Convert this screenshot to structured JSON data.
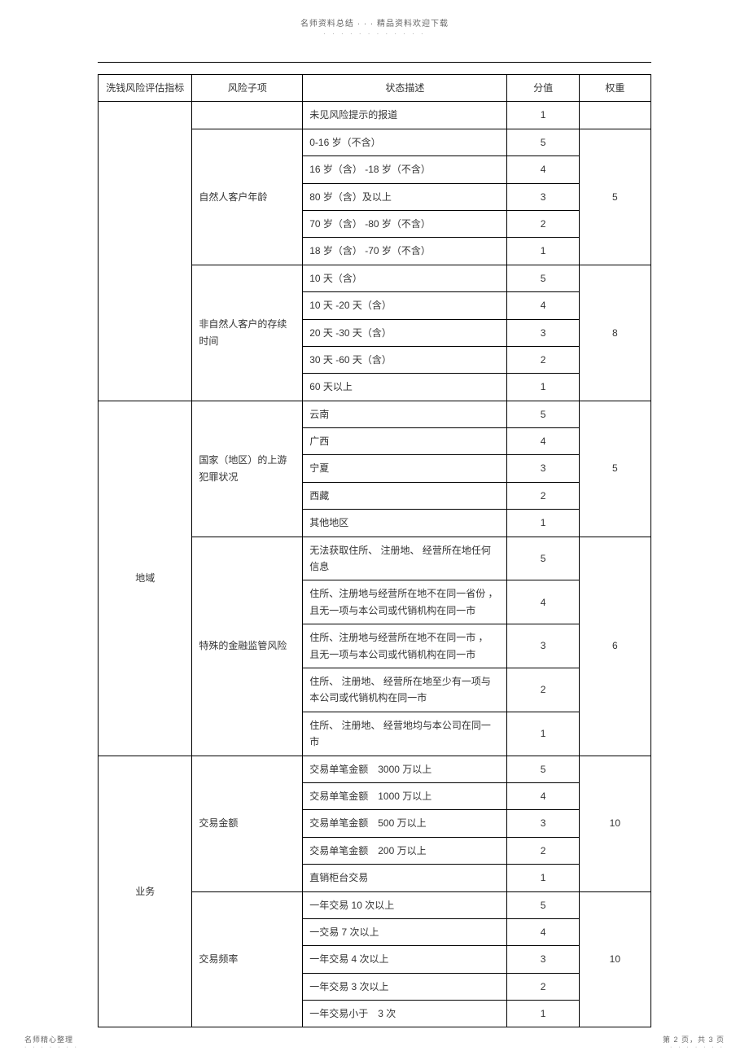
{
  "header": {
    "top_text": "名师资料总结 · · · 精品资料欢迎下载",
    "dots": "· · · · · · · · · · · ·"
  },
  "table": {
    "headers": {
      "c1": "洗钱风险评估指标",
      "c2": "风险子项",
      "c3": "状态描述",
      "c4": "分值",
      "c5": "权重"
    },
    "group0_row0_desc": "未见风险提示的报道",
    "group0_row0_score": "1",
    "group1_label": "自然人客户年龄",
    "group1_weight": "5",
    "group1_r1_desc": "0-16 岁（不含）",
    "group1_r1_score": "5",
    "group1_r2_desc": "16 岁（含） -18 岁（不含）",
    "group1_r2_score": "4",
    "group1_r3_desc": "80 岁（含）及以上",
    "group1_r3_score": "3",
    "group1_r4_desc": "70 岁（含） -80 岁（不含）",
    "group1_r4_score": "2",
    "group1_r5_desc": "18 岁（含） -70 岁（不含）",
    "group1_r5_score": "1",
    "group2_label": "非自然人客户的存续时间",
    "group2_weight": "8",
    "group2_r1_desc": "10 天（含）",
    "group2_r1_score": "5",
    "group2_r2_desc": "10 天 -20 天（含）",
    "group2_r2_score": "4",
    "group2_r3_desc": "20 天 -30 天（含）",
    "group2_r3_score": "3",
    "group2_r4_desc": "30 天 -60 天（含）",
    "group2_r4_score": "2",
    "group2_r5_desc": "60 天以上",
    "group2_r5_score": "1",
    "region_label": "地域",
    "group3_label": "国家（地区）的上游犯罪状况",
    "group3_weight": "5",
    "group3_r1_desc": "云南",
    "group3_r1_score": "5",
    "group3_r2_desc": "广西",
    "group3_r2_score": "4",
    "group3_r3_desc": "宁夏",
    "group3_r3_score": "3",
    "group3_r4_desc": "西藏",
    "group3_r4_score": "2",
    "group3_r5_desc": "其他地区",
    "group3_r5_score": "1",
    "group4_label": "特殊的金融监管风险",
    "group4_weight": "6",
    "group4_r1_desc": "无法获取住所、 注册地、 经营所在地任何信息",
    "group4_r1_score": "5",
    "group4_r2_desc": "住所、注册地与经营所在地不在同一省份 ， 且无一项与本公司或代销机构在同一市",
    "group4_r2_score": "4",
    "group4_r3_desc": "住所、注册地与经营所在地不在同一市 ， 且无一项与本公司或代销机构在同一市",
    "group4_r3_score": "3",
    "group4_r4_desc": "住所、 注册地、 经营所在地至少有一项与本公司或代销机构在同一市",
    "group4_r4_score": "2",
    "group4_r5_desc": "住所、 注册地、 经营地均与本公司在同一市",
    "group4_r5_score": "1",
    "biz_label": "业务",
    "group5_label": "交易金额",
    "group5_weight": "10",
    "group5_r1_desc": "交易单笔金额　3000 万以上",
    "group5_r1_score": "5",
    "group5_r2_desc": "交易单笔金额　1000 万以上",
    "group5_r2_score": "4",
    "group5_r3_desc": "交易单笔金额　500 万以上",
    "group5_r3_score": "3",
    "group5_r4_desc": "交易单笔金额　200 万以上",
    "group5_r4_score": "2",
    "group5_r5_desc": "直销柜台交易",
    "group5_r5_score": "1",
    "group6_label": "交易频率",
    "group6_weight": "10",
    "group6_r1_desc": "一年交易  10 次以上",
    "group6_r1_score": "5",
    "group6_r2_desc": "一交易  7 次以上",
    "group6_r2_score": "4",
    "group6_r3_desc": "一年交易  4 次以上",
    "group6_r3_score": "3",
    "group6_r4_desc": "一年交易  3 次以上",
    "group6_r4_score": "2",
    "group6_r5_desc": "一年交易小于　3 次",
    "group6_r5_score": "1"
  },
  "footer": {
    "left": "名师精心整理",
    "right": "第 2 页，共 3 页",
    "dots": "· · · · · · ·"
  }
}
